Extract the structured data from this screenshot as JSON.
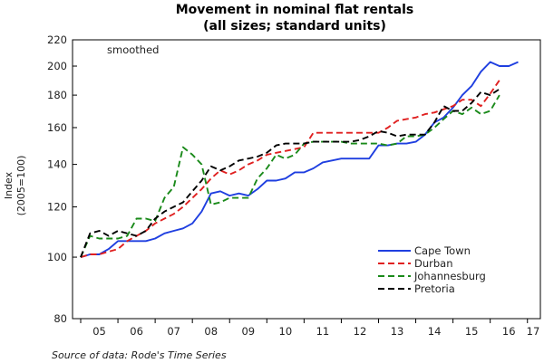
{
  "chart_data": {
    "type": "line",
    "title": "Movement in nominal flat rentals",
    "subtitle": "(all sizes; standard units)",
    "ylabel": "Index",
    "ylabel_unit": "(2005=100)",
    "annotation": "smoothed",
    "source": "Source of data: Rode's Time Series",
    "y_scale": "log",
    "ylim": [
      80,
      220
    ],
    "y_ticks": [
      80,
      100,
      120,
      140,
      160,
      180,
      200,
      220
    ],
    "x_categories": [
      "05",
      "06",
      "07",
      "08",
      "09",
      "10",
      "11",
      "12",
      "13",
      "14",
      "15",
      "16",
      "17"
    ],
    "x_range": [
      2005.0,
      2017.25
    ],
    "legend_position": "bottom-right",
    "grid": false,
    "series": [
      {
        "name": "Cape Town",
        "color": "#1f3fe0",
        "dash": "solid",
        "points": [
          [
            2005.0,
            100
          ],
          [
            2005.25,
            101
          ],
          [
            2005.5,
            101
          ],
          [
            2005.75,
            103
          ],
          [
            2006.0,
            106
          ],
          [
            2006.25,
            106
          ],
          [
            2006.5,
            106
          ],
          [
            2006.75,
            106
          ],
          [
            2007.0,
            107
          ],
          [
            2007.25,
            109
          ],
          [
            2007.5,
            110
          ],
          [
            2007.75,
            111
          ],
          [
            2008.0,
            113
          ],
          [
            2008.25,
            118
          ],
          [
            2008.5,
            126
          ],
          [
            2008.75,
            127
          ],
          [
            2009.0,
            125
          ],
          [
            2009.25,
            126
          ],
          [
            2009.5,
            125
          ],
          [
            2009.75,
            128
          ],
          [
            2010.0,
            132
          ],
          [
            2010.25,
            132
          ],
          [
            2010.5,
            133
          ],
          [
            2010.75,
            136
          ],
          [
            2011.0,
            136
          ],
          [
            2011.25,
            138
          ],
          [
            2011.5,
            141
          ],
          [
            2011.75,
            142
          ],
          [
            2012.0,
            143
          ],
          [
            2012.25,
            143
          ],
          [
            2012.5,
            143
          ],
          [
            2012.75,
            143
          ],
          [
            2013.0,
            150
          ],
          [
            2013.25,
            150
          ],
          [
            2013.5,
            151
          ],
          [
            2013.75,
            151
          ],
          [
            2014.0,
            152
          ],
          [
            2014.25,
            156
          ],
          [
            2014.5,
            163
          ],
          [
            2014.75,
            166
          ],
          [
            2015.0,
            172
          ],
          [
            2015.25,
            180
          ],
          [
            2015.5,
            186
          ],
          [
            2015.75,
            196
          ],
          [
            2016.0,
            203
          ],
          [
            2016.25,
            200
          ],
          [
            2016.5,
            200
          ],
          [
            2016.75,
            203
          ]
        ]
      },
      {
        "name": "Durban",
        "color": "#e02020",
        "dash": "7,4",
        "points": [
          [
            2005.0,
            100
          ],
          [
            2005.25,
            101
          ],
          [
            2005.5,
            101
          ],
          [
            2005.75,
            102
          ],
          [
            2006.0,
            103
          ],
          [
            2006.25,
            106
          ],
          [
            2006.5,
            108
          ],
          [
            2006.75,
            110
          ],
          [
            2007.0,
            113
          ],
          [
            2007.25,
            115
          ],
          [
            2007.5,
            117
          ],
          [
            2007.75,
            120
          ],
          [
            2008.0,
            124
          ],
          [
            2008.25,
            128
          ],
          [
            2008.5,
            133
          ],
          [
            2008.75,
            137
          ],
          [
            2009.0,
            135
          ],
          [
            2009.25,
            137
          ],
          [
            2009.5,
            140
          ],
          [
            2009.75,
            142
          ],
          [
            2010.0,
            145
          ],
          [
            2010.25,
            146
          ],
          [
            2010.5,
            147
          ],
          [
            2010.75,
            148
          ],
          [
            2011.0,
            149
          ],
          [
            2011.25,
            157
          ],
          [
            2011.5,
            157
          ],
          [
            2011.75,
            157
          ],
          [
            2012.0,
            157
          ],
          [
            2012.25,
            157
          ],
          [
            2012.5,
            157
          ],
          [
            2012.75,
            157
          ],
          [
            2013.0,
            157
          ],
          [
            2013.25,
            160
          ],
          [
            2013.5,
            164
          ],
          [
            2013.75,
            165
          ],
          [
            2014.0,
            166
          ],
          [
            2014.25,
            168
          ],
          [
            2014.5,
            169
          ],
          [
            2014.75,
            171
          ],
          [
            2015.0,
            173
          ],
          [
            2015.25,
            177
          ],
          [
            2015.5,
            177
          ],
          [
            2015.75,
            173
          ],
          [
            2016.0,
            181
          ],
          [
            2016.25,
            190
          ]
        ]
      },
      {
        "name": "Johannesburg",
        "color": "#1a8a1a",
        "dash": "7,4",
        "points": [
          [
            2005.0,
            100
          ],
          [
            2005.25,
            108
          ],
          [
            2005.5,
            107
          ],
          [
            2005.75,
            107
          ],
          [
            2006.0,
            107
          ],
          [
            2006.25,
            108
          ],
          [
            2006.5,
            115
          ],
          [
            2006.75,
            115
          ],
          [
            2007.0,
            114
          ],
          [
            2007.25,
            124
          ],
          [
            2007.5,
            129
          ],
          [
            2007.75,
            149
          ],
          [
            2008.0,
            145
          ],
          [
            2008.25,
            140
          ],
          [
            2008.5,
            121
          ],
          [
            2008.75,
            122
          ],
          [
            2009.0,
            124
          ],
          [
            2009.25,
            124
          ],
          [
            2009.5,
            124
          ],
          [
            2009.75,
            133
          ],
          [
            2010.0,
            138
          ],
          [
            2010.25,
            145
          ],
          [
            2010.5,
            143
          ],
          [
            2010.75,
            145
          ],
          [
            2011.0,
            151
          ],
          [
            2011.25,
            152
          ],
          [
            2011.5,
            152
          ],
          [
            2011.75,
            152
          ],
          [
            2012.0,
            152
          ],
          [
            2012.25,
            151
          ],
          [
            2012.5,
            151
          ],
          [
            2012.75,
            151
          ],
          [
            2013.0,
            151
          ],
          [
            2013.25,
            150
          ],
          [
            2013.5,
            151
          ],
          [
            2013.75,
            155
          ],
          [
            2014.0,
            155
          ],
          [
            2014.25,
            156
          ],
          [
            2014.5,
            160
          ],
          [
            2014.75,
            165
          ],
          [
            2015.0,
            170
          ],
          [
            2015.25,
            168
          ],
          [
            2015.5,
            172
          ],
          [
            2015.75,
            168
          ],
          [
            2016.0,
            170
          ],
          [
            2016.25,
            180
          ]
        ]
      },
      {
        "name": "Pretoria",
        "color": "#000000",
        "dash": "7,4",
        "points": [
          [
            2005.0,
            100
          ],
          [
            2005.25,
            109
          ],
          [
            2005.5,
            110
          ],
          [
            2005.75,
            108
          ],
          [
            2006.0,
            110
          ],
          [
            2006.25,
            109
          ],
          [
            2006.5,
            108
          ],
          [
            2006.75,
            110
          ],
          [
            2007.0,
            115
          ],
          [
            2007.25,
            118
          ],
          [
            2007.5,
            120
          ],
          [
            2007.75,
            122
          ],
          [
            2008.0,
            127
          ],
          [
            2008.25,
            132
          ],
          [
            2008.5,
            139
          ],
          [
            2008.75,
            137
          ],
          [
            2009.0,
            139
          ],
          [
            2009.25,
            142
          ],
          [
            2009.5,
            143
          ],
          [
            2009.75,
            144
          ],
          [
            2010.0,
            146
          ],
          [
            2010.25,
            150
          ],
          [
            2010.5,
            151
          ],
          [
            2010.75,
            151
          ],
          [
            2011.0,
            151
          ],
          [
            2011.25,
            152
          ],
          [
            2011.5,
            152
          ],
          [
            2011.75,
            152
          ],
          [
            2012.0,
            152
          ],
          [
            2012.25,
            152
          ],
          [
            2012.5,
            153
          ],
          [
            2012.75,
            155
          ],
          [
            2013.0,
            158
          ],
          [
            2013.25,
            157
          ],
          [
            2013.5,
            155
          ],
          [
            2013.75,
            156
          ],
          [
            2014.0,
            156
          ],
          [
            2014.25,
            156
          ],
          [
            2014.5,
            163
          ],
          [
            2014.75,
            173
          ],
          [
            2015.0,
            170
          ],
          [
            2015.25,
            170
          ],
          [
            2015.5,
            175
          ],
          [
            2015.75,
            182
          ],
          [
            2016.0,
            180
          ],
          [
            2016.25,
            184
          ]
        ]
      }
    ]
  }
}
